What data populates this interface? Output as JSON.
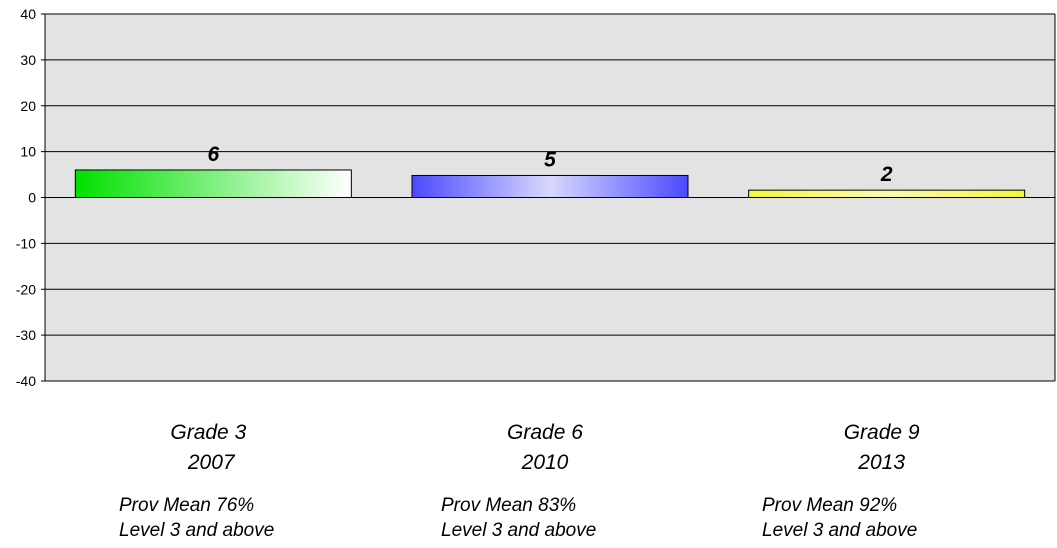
{
  "colors": {
    "plot_background": "#e3e3e3",
    "grid": "#000000",
    "bar_fills": [
      [
        "#00e000",
        "#ffffff"
      ],
      [
        "#4a4aff",
        "#d8d8ff",
        "#4a4aff"
      ],
      [
        "#f5f542",
        "#fbfbb0",
        "#f5f542"
      ]
    ]
  },
  "chart_data": {
    "type": "bar",
    "title": "",
    "xlabel": "",
    "ylabel": "",
    "ylim": [
      -40,
      40
    ],
    "yticks": [
      "40",
      "30",
      "20",
      "10",
      "0",
      "-10",
      "-20",
      "-30",
      "-40"
    ],
    "grid": true,
    "values": [
      6,
      5,
      2
    ],
    "plotted_values": [
      6,
      4.8,
      1.6
    ],
    "value_labels": [
      "6",
      "5",
      "2"
    ],
    "categories": [
      {
        "title": "Grade 3\n 2007",
        "line1": "Prov Mean  76%",
        "line2": "Level 3 and above"
      },
      {
        "title": "Grade 6\n2010",
        "line1": "Prov Mean 83%",
        "line2": "Level 3 and above"
      },
      {
        "title": "Grade 9\n2013",
        "line1": "Prov Mean 92%",
        "line2": "Level 3 and above"
      }
    ]
  }
}
